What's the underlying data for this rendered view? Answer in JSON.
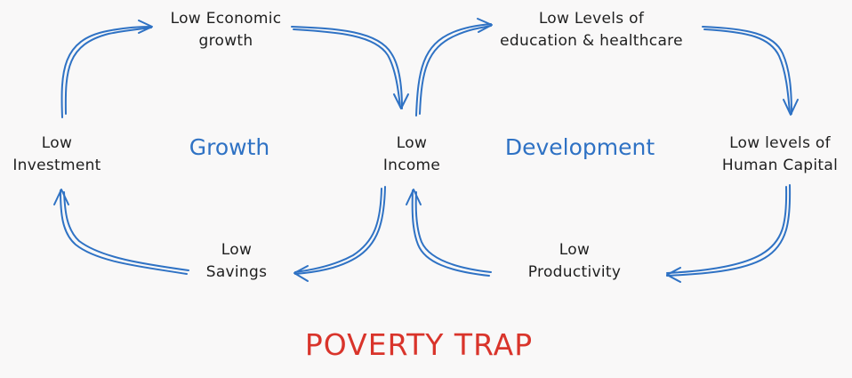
{
  "diagram": {
    "nodes": {
      "low_economic_growth": [
        "Low Economic",
        "growth"
      ],
      "low_income": [
        "Low",
        "Income"
      ],
      "low_savings": [
        "Low",
        "Savings"
      ],
      "low_investment": [
        "Low",
        "Investment"
      ],
      "low_education_healthcare": [
        "Low Levels of",
        "education & healthcare"
      ],
      "low_human_capital": [
        "Low levels of",
        "Human Capital"
      ],
      "low_productivity": [
        "Low",
        "Productivity"
      ]
    },
    "sections": {
      "growth": "Growth",
      "development": "Development"
    },
    "title": "POVERTY TRAP"
  },
  "colors": {
    "arrow": "#2f72c4",
    "section_label": "#2f72c4",
    "title": "#d9342b",
    "node_text": "#1f1f1f",
    "background": "#f9f8f8"
  }
}
